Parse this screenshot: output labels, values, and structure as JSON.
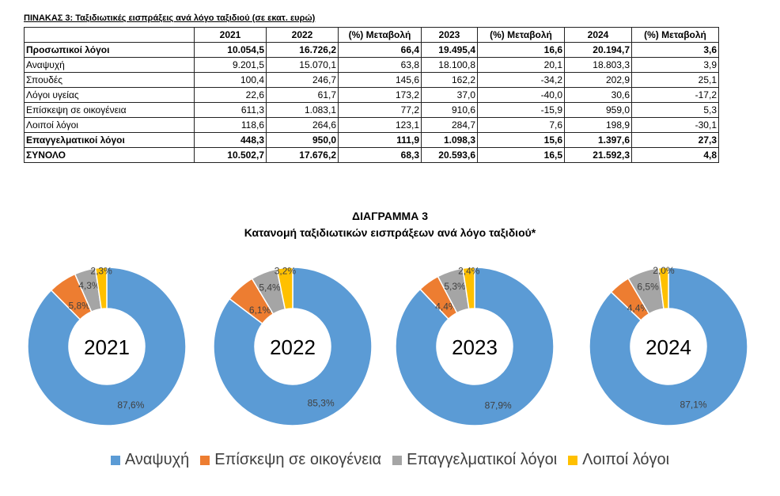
{
  "table": {
    "caption": "ΠΙΝΑΚΑΣ 3: Ταξιδιωτικές εισπράξεις ανά λόγο ταξιδιού (σε εκατ. ευρώ)",
    "headers": [
      "",
      "2021",
      "2022",
      "(%) Μεταβολή",
      "2023",
      "(%) Μεταβολή",
      "2024",
      "(%) Μεταβολή"
    ],
    "rows": [
      {
        "bold": true,
        "cells": [
          "Προσωπικοί λόγοι",
          "10.054,5",
          "16.726,2",
          "66,4",
          "19.495,4",
          "16,6",
          "20.194,7",
          "3,6"
        ]
      },
      {
        "bold": false,
        "cells": [
          "Αναψυχή",
          "9.201,5",
          "15.070,1",
          "63,8",
          "18.100,8",
          "20,1",
          "18.803,3",
          "3,9"
        ]
      },
      {
        "bold": false,
        "cells": [
          "Σπουδές",
          "100,4",
          "246,7",
          "145,6",
          "162,2",
          "-34,2",
          "202,9",
          "25,1"
        ]
      },
      {
        "bold": false,
        "cells": [
          "Λόγοι υγείας",
          "22,6",
          "61,7",
          "173,2",
          "37,0",
          "-40,0",
          "30,6",
          "-17,2"
        ]
      },
      {
        "bold": false,
        "cells": [
          "Επίσκεψη σε οικογένεια",
          "611,3",
          "1.083,1",
          "77,2",
          "910,6",
          "-15,9",
          "959,0",
          "5,3"
        ]
      },
      {
        "bold": false,
        "cells": [
          "Λοιποί λόγοι",
          "118,6",
          "264,6",
          "123,1",
          "284,7",
          "7,6",
          "198,9",
          "-30,1"
        ]
      },
      {
        "bold": true,
        "cells": [
          "Επαγγελματικοί λόγοι",
          "448,3",
          "950,0",
          "111,9",
          "1.098,3",
          "15,6",
          "1.397,6",
          "27,3"
        ]
      },
      {
        "bold": true,
        "cells": [
          "ΣΥΝΟΛΟ",
          "10.502,7",
          "17.676,2",
          "68,3",
          "20.593,6",
          "16,5",
          "21.592,3",
          "4,8"
        ]
      }
    ]
  },
  "chart_data": {
    "type": "pie",
    "title": "ΔΙΑΓΡΑΜΜΑ 3",
    "subtitle": "Κατανομή ταξιδιωτικών εισπράξεων ανά λόγο ταξιδιού*",
    "legend": [
      "Αναψυχή",
      "Επίσκεψη σε οικογένεια",
      "Επαγγελματικοί λόγοι",
      "Λοιποί λόγοι"
    ],
    "colors": [
      "#5B9BD5",
      "#ED7D31",
      "#A5A5A5",
      "#FFC000"
    ],
    "legend_position": "bottom",
    "charts": [
      {
        "year": "2021",
        "values": [
          87.6,
          5.8,
          4.3,
          2.3
        ],
        "labels": [
          "87,6%",
          "5,8%",
          "4,3%",
          "2,3%"
        ]
      },
      {
        "year": "2022",
        "values": [
          85.3,
          6.1,
          5.4,
          3.2
        ],
        "labels": [
          "85,3%",
          "6,1%",
          "5,4%",
          "3,2%"
        ]
      },
      {
        "year": "2023",
        "values": [
          87.9,
          4.4,
          5.3,
          2.4
        ],
        "labels": [
          "87,9%",
          "4,4%",
          "5,3%",
          "2,4%"
        ]
      },
      {
        "year": "2024",
        "values": [
          87.1,
          4.4,
          6.5,
          2.0
        ],
        "labels": [
          "87,1%",
          "4,4%",
          "6,5%",
          "2,0%"
        ]
      }
    ]
  }
}
